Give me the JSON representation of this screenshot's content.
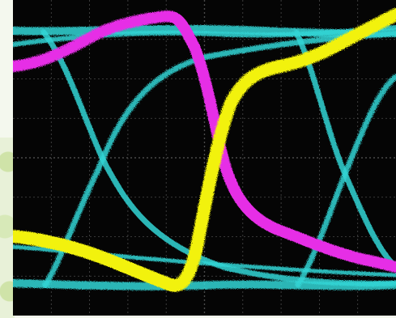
{
  "colors": {
    "background": "#050505",
    "grid": "#4a4a4a",
    "channel_1": "#34d6d6",
    "channel_2": "#e62ee6",
    "channel_3": "#f2f20a"
  },
  "display": {
    "grid_divisions_x": 10,
    "grid_divisions_y": 8
  }
}
